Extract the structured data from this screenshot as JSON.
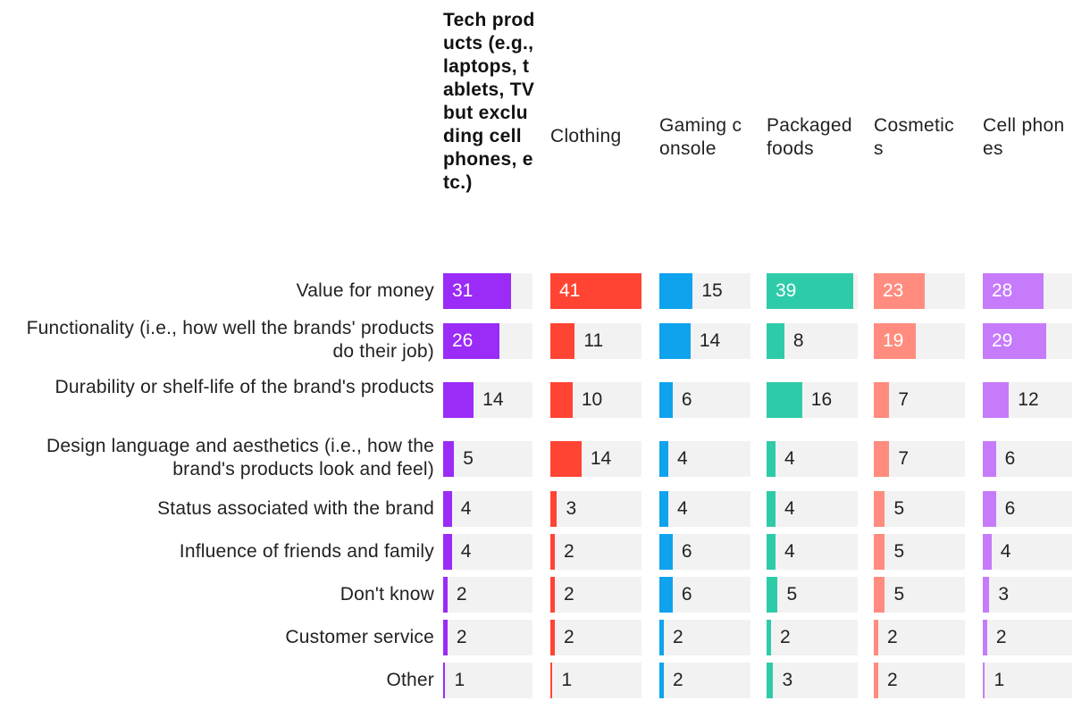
{
  "chart_data": {
    "type": "bar",
    "title": "",
    "xlabel": "",
    "ylabel": "",
    "xlim": [
      0,
      41
    ],
    "categories": [
      "Value for money",
      "Functionality (i.e., how well the brands' products do their job)",
      "Durability or shelf-life of the brand's products",
      "Design language and aesthetics (i.e., how the brand's products look and feel)",
      "Status associated with the brand",
      "Influence of friends and family",
      "Don't know",
      "Customer service",
      "Other"
    ],
    "series": [
      {
        "name": "Tech products (e.g.,laptops, tablets, TV but excluding cell phones, etc.)",
        "color": "#9b2bf7",
        "values": [
          31,
          26,
          14,
          5,
          4,
          4,
          2,
          2,
          1
        ]
      },
      {
        "name": "Clothing",
        "color": "#ff4433",
        "values": [
          41,
          11,
          10,
          14,
          3,
          2,
          2,
          2,
          1
        ]
      },
      {
        "name": "Gaming console",
        "color": "#0fa3ee",
        "values": [
          15,
          14,
          6,
          4,
          4,
          6,
          6,
          2,
          2
        ]
      },
      {
        "name": "Packaged foods",
        "color": "#2ecba9",
        "values": [
          39,
          8,
          16,
          4,
          4,
          4,
          5,
          2,
          3
        ]
      },
      {
        "name": "Cosmetics",
        "color": "#ff8c7e",
        "values": [
          23,
          19,
          7,
          7,
          5,
          5,
          5,
          2,
          2
        ]
      },
      {
        "name": "Cell phones",
        "color": "#c67bfb",
        "values": [
          28,
          29,
          12,
          6,
          6,
          4,
          3,
          2,
          1
        ]
      }
    ]
  }
}
